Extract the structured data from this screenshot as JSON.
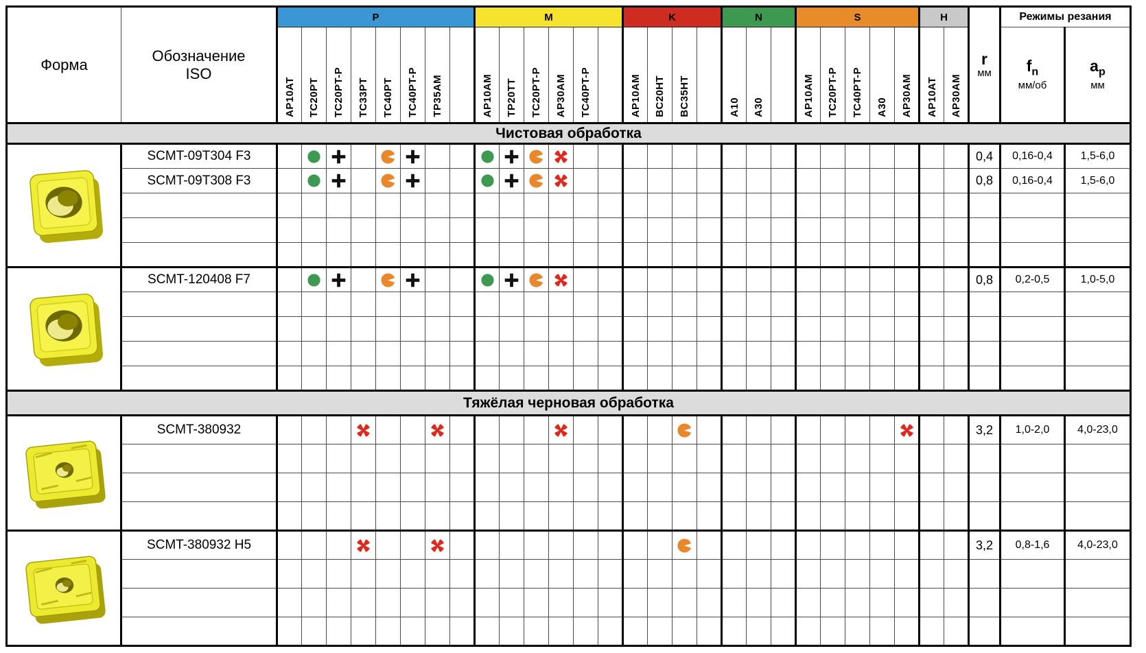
{
  "page": {
    "headers": {
      "shape": "Форма",
      "iso": [
        "Обозначение",
        "ISO"
      ],
      "cutting_modes_title": "Режимы резания",
      "r": {
        "symbol": "r",
        "unit": "мм"
      },
      "fn": {
        "symbol": "f",
        "subscript": "n",
        "unit": "мм/об"
      },
      "ap": {
        "symbol": "a",
        "subscript": "p",
        "unit": "мм"
      }
    },
    "grade_groups": [
      {
        "code": "P",
        "color": "#3b97d3",
        "grades": [
          "AP10AT",
          "TC20PT",
          "TC20PT-P",
          "TC33PT",
          "TC40PT",
          "TC40PT-P",
          "TP35AM",
          ""
        ]
      },
      {
        "code": "M",
        "color": "#f5e32e",
        "grades": [
          "AP10AM",
          "TP20TT",
          "TC20PT-P",
          "AP30AM",
          "TC40PT-P",
          ""
        ]
      },
      {
        "code": "K",
        "color": "#ce2c21",
        "grades": [
          "AP10AM",
          "BC20HT",
          "BC35HT",
          ""
        ]
      },
      {
        "code": "N",
        "color": "#3d9950",
        "grades": [
          "A10",
          "A30",
          ""
        ]
      },
      {
        "code": "S",
        "color": "#e78c28",
        "grades": [
          "AP10AM",
          "TC20PT-P",
          "TC40PT-P",
          "A30",
          "AP30AM"
        ]
      },
      {
        "code": "H",
        "color": "#c9c9c9",
        "grades": [
          "AP10AT",
          "AP30AM"
        ]
      }
    ],
    "marker_colors": {
      "circle": "#3e9a50",
      "plus": "#111111",
      "pacman": "#e8872b",
      "burst": "#dc2b1e"
    },
    "sections": [
      {
        "title": "Чистовая обработка",
        "blocks": [
          {
            "shape_icon": "scmt-insert-finishing",
            "rows": [
              {
                "iso": "SCMT-09T304 F3",
                "marks": {
                  "1": "circle",
                  "2": "plus",
                  "4": "pacman",
                  "5": "plus",
                  "8": "circle",
                  "9": "plus",
                  "10": "pacman",
                  "11": "burst"
                },
                "r": "0,4",
                "fn": "0,16-0,4",
                "ap": "1,5-6,0"
              },
              {
                "iso": "SCMT-09T308 F3",
                "marks": {
                  "1": "circle",
                  "2": "plus",
                  "4": "pacman",
                  "5": "plus",
                  "8": "circle",
                  "9": "plus",
                  "10": "pacman",
                  "11": "burst"
                },
                "r": "0,8",
                "fn": "0,16-0,4",
                "ap": "1,5-6,0"
              }
            ],
            "empty_rows": 3
          },
          {
            "shape_icon": "scmt-insert-finishing",
            "rows": [
              {
                "iso": "SCMT-120408 F7",
                "marks": {
                  "1": "circle",
                  "2": "plus",
                  "4": "pacman",
                  "5": "plus",
                  "8": "circle",
                  "9": "plus",
                  "10": "pacman",
                  "11": "burst"
                },
                "r": "0,8",
                "fn": "0,2-0,5",
                "ap": "1,0-5,0"
              }
            ],
            "empty_rows": 4
          }
        ]
      },
      {
        "title": "Тяжёлая черновая обработка",
        "blocks": [
          {
            "shape_icon": "scmt-insert-roughing",
            "rows": [
              {
                "iso": "SCMT-380932",
                "marks": {
                  "3": "burst",
                  "6": "burst",
                  "11": "burst",
                  "16": "pacman",
                  "25": "burst"
                },
                "r": "3,2",
                "fn": "1,0-2,0",
                "ap": "4,0-23,0"
              }
            ],
            "empty_rows": 3
          },
          {
            "shape_icon": "scmt-insert-roughing",
            "rows": [
              {
                "iso": "SCMT-380932 H5",
                "marks": {
                  "3": "burst",
                  "6": "burst",
                  "16": "pacman"
                },
                "r": "3,2",
                "fn": "0,8-1,6",
                "ap": "4,0-23,0"
              }
            ],
            "empty_rows": 3
          }
        ]
      }
    ]
  }
}
